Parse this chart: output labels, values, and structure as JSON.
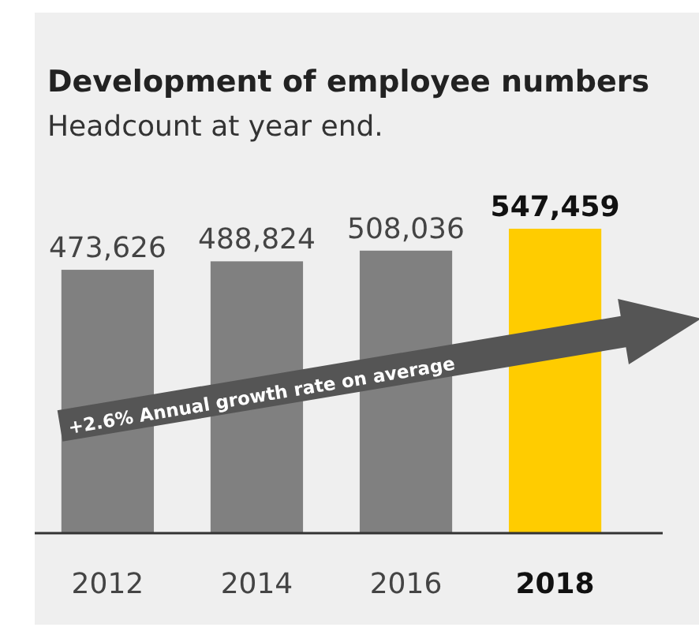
{
  "chart_data": {
    "type": "bar",
    "title": "Development of employee numbers",
    "subtitle": "Headcount at year end.",
    "categories": [
      "2012",
      "2014",
      "2016",
      "2018"
    ],
    "values": [
      473626,
      488824,
      508036,
      547459
    ],
    "colors": [
      "#808080",
      "#808080",
      "#808080",
      "#ffcc00"
    ],
    "value_labels": [
      "473,626",
      "488,824",
      "508,036",
      "547,459"
    ],
    "annotations": [
      "+2.6% Annual growth rate on average"
    ]
  }
}
